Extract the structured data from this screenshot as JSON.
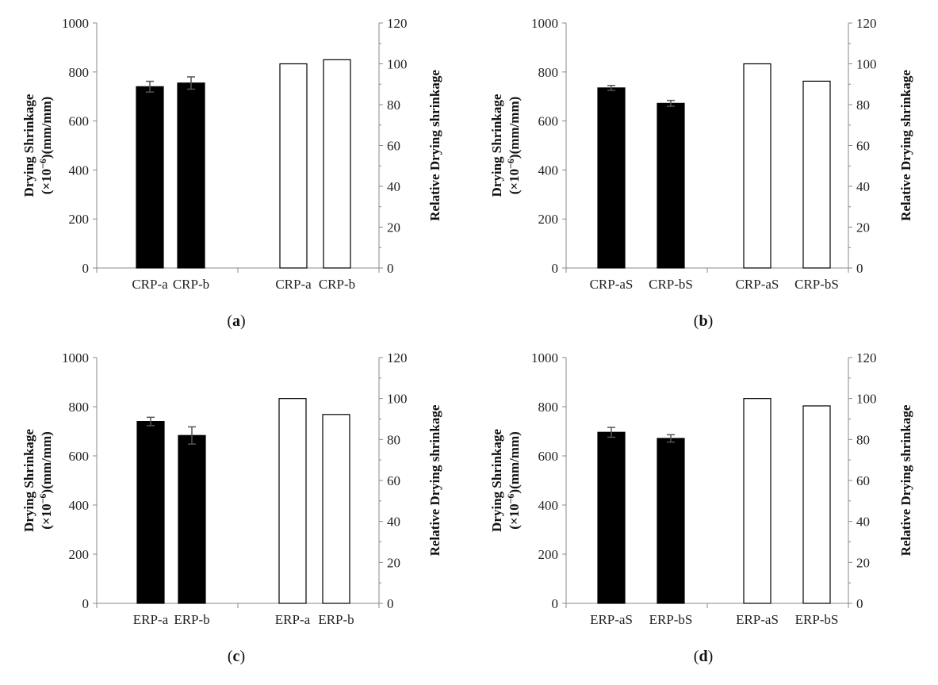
{
  "chart_data": [
    {
      "type": "bar",
      "panel": "a",
      "left_axis": {
        "label_line1": "Drying Shrinkage",
        "label_line2": "(×10",
        "label_exp": "−6",
        "label_unit": ")(mm/mm)",
        "ylim": [
          0,
          1000
        ],
        "ticks": [
          "0",
          "200",
          "400",
          "600",
          "800",
          "1000"
        ]
      },
      "right_axis": {
        "label": "Relative Drying shrinkage",
        "ylim": [
          0,
          120
        ],
        "ticks": [
          "0",
          "20",
          "40",
          "60",
          "80",
          "100",
          "120"
        ]
      },
      "series": [
        {
          "name": "Drying shrinkage",
          "axis": "left",
          "fill": "#000000",
          "categories": [
            "CRP-a",
            "CRP-b"
          ],
          "values": [
            740,
            755
          ],
          "errors": [
            22,
            25
          ]
        },
        {
          "name": "Relative drying shrinkage",
          "axis": "right",
          "fill": "#ffffff",
          "categories": [
            "CRP-a",
            "CRP-b"
          ],
          "values": [
            100,
            102
          ]
        }
      ]
    },
    {
      "type": "bar",
      "panel": "b",
      "left_axis": {
        "label_line1": "Drying Shrinkage",
        "label_line2": "(×10",
        "label_exp": "−6",
        "label_unit": ")(mm/mm)",
        "ylim": [
          0,
          1000
        ],
        "ticks": [
          "0",
          "200",
          "400",
          "600",
          "800",
          "1000"
        ]
      },
      "right_axis": {
        "label": "Relative Drying shrinkage",
        "ylim": [
          0,
          120
        ],
        "ticks": [
          "0",
          "20",
          "40",
          "60",
          "80",
          "100",
          "120"
        ]
      },
      "series": [
        {
          "name": "Drying shrinkage",
          "axis": "left",
          "fill": "#000000",
          "categories": [
            "CRP-aS",
            "CRP-bS"
          ],
          "values": [
            735,
            672
          ],
          "errors": [
            10,
            12
          ]
        },
        {
          "name": "Relative drying shrinkage",
          "axis": "right",
          "fill": "#ffffff",
          "categories": [
            "CRP-aS",
            "CRP-bS"
          ],
          "values": [
            100,
            91.5
          ]
        }
      ]
    },
    {
      "type": "bar",
      "panel": "c",
      "left_axis": {
        "label_line1": "Drying Shrinkage",
        "label_line2": "(×10",
        "label_exp": "−6",
        "label_unit": ")(mm/mm)",
        "ylim": [
          0,
          1000
        ],
        "ticks": [
          "0",
          "200",
          "400",
          "600",
          "800",
          "1000"
        ]
      },
      "right_axis": {
        "label": "Relative Drying shrinkage",
        "ylim": [
          0,
          120
        ],
        "ticks": [
          "0",
          "20",
          "40",
          "60",
          "80",
          "100",
          "120"
        ]
      },
      "series": [
        {
          "name": "Drying shrinkage",
          "axis": "left",
          "fill": "#000000",
          "categories": [
            "ERP-a",
            "ERP-b"
          ],
          "values": [
            740,
            683
          ],
          "errors": [
            17,
            35
          ]
        },
        {
          "name": "Relative drying shrinkage",
          "axis": "right",
          "fill": "#ffffff",
          "categories": [
            "ERP-a",
            "ERP-b"
          ],
          "values": [
            100,
            92.2
          ]
        }
      ]
    },
    {
      "type": "bar",
      "panel": "d",
      "left_axis": {
        "label_line1": "Drying Shrinkage",
        "label_line2": "(×10",
        "label_exp": "−6",
        "label_unit": ")(mm/mm)",
        "ylim": [
          0,
          1000
        ],
        "ticks": [
          "0",
          "200",
          "400",
          "600",
          "800",
          "1000"
        ]
      },
      "right_axis": {
        "label": "Relative Drying shrinkage",
        "ylim": [
          0,
          120
        ],
        "ticks": [
          "0",
          "20",
          "40",
          "60",
          "80",
          "100",
          "120"
        ]
      },
      "series": [
        {
          "name": "Drying shrinkage",
          "axis": "left",
          "fill": "#000000",
          "categories": [
            "ERP-aS",
            "ERP-bS"
          ],
          "values": [
            696,
            671
          ],
          "errors": [
            20,
            15
          ]
        },
        {
          "name": "Relative drying shrinkage",
          "axis": "right",
          "fill": "#ffffff",
          "categories": [
            "ERP-aS",
            "ERP-bS"
          ],
          "values": [
            100,
            96.4
          ]
        }
      ]
    }
  ],
  "captions": [
    {
      "open": "(",
      "letter": "a",
      "close": ")"
    },
    {
      "open": "(",
      "letter": "b",
      "close": ")"
    },
    {
      "open": "(",
      "letter": "c",
      "close": ")"
    },
    {
      "open": "(",
      "letter": "d",
      "close": ")"
    }
  ],
  "colors": {
    "axis": "#888888",
    "bar_dark": "#000000",
    "bar_light": "#ffffff",
    "error": "#555555",
    "text": "#222222"
  }
}
